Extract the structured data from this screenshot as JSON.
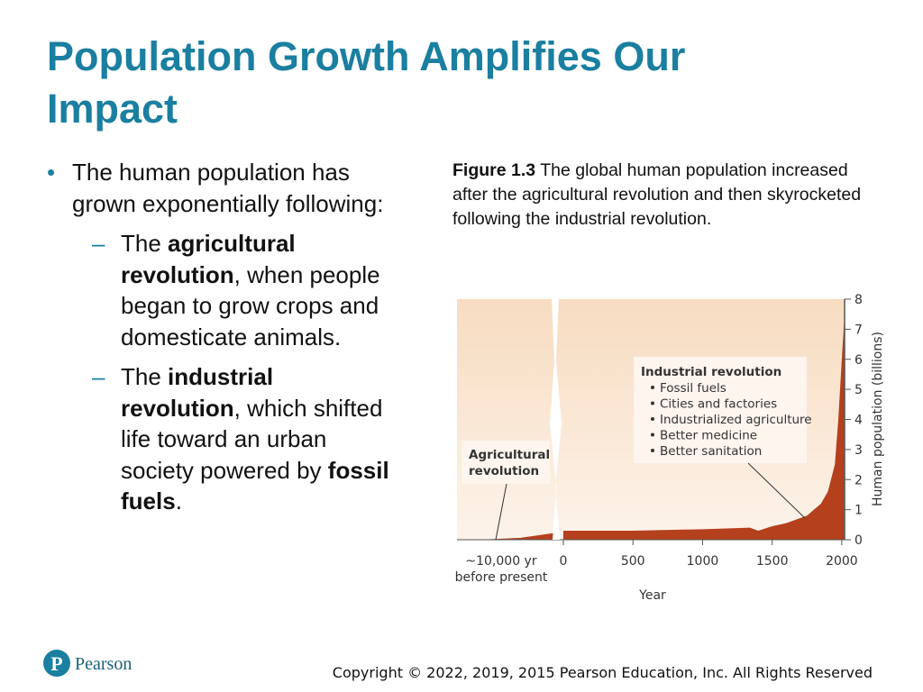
{
  "slide": {
    "title": "Population Growth Amplifies Our Impact",
    "bullet": "The human population has grown exponentially following:",
    "sub_bullets": [
      [
        {
          "text": "The "
        },
        {
          "text": "agricultural revolution",
          "bold": true
        },
        {
          "text": ", when people began to grow crops and domesticate animals."
        }
      ],
      [
        {
          "text": "The "
        },
        {
          "text": "industrial revolution",
          "bold": true
        },
        {
          "text": ", which shifted life toward an urban society powered by "
        },
        {
          "text": "fossil fuels",
          "bold": true
        },
        {
          "text": "."
        }
      ]
    ],
    "caption_label": "Figure 1.3",
    "caption": "The global human population increased after the agricultural revolution and then skyrocketed following the industrial revolution.",
    "logo": "Pearson",
    "copyright": "Copyright © 2022, 2019, 2015 Pearson Education, Inc. All Rights Reserved"
  },
  "chart_data": {
    "type": "area",
    "xlabel": "Year",
    "ylabel": "Human population (billions)",
    "early_label": "~10,000 yr before present",
    "early_values": [
      0,
      0,
      0.05,
      0.2
    ],
    "x": [
      0,
      500,
      1000,
      1340,
      1400,
      1500,
      1600,
      1750,
      1850,
      1900,
      1950,
      1975,
      2000,
      2020
    ],
    "series": [
      {
        "name": "Human population",
        "color": "#b5401d",
        "values": [
          0.3,
          0.3,
          0.35,
          0.4,
          0.3,
          0.45,
          0.55,
          0.8,
          1.2,
          1.6,
          2.5,
          4,
          6,
          7.5
        ]
      }
    ],
    "xlim": [
      0,
      2020
    ],
    "xticks": [
      0,
      500,
      1000,
      1500,
      2000
    ],
    "ylim": [
      0,
      8
    ],
    "yticks": [
      0,
      1,
      2,
      3,
      4,
      5,
      6,
      7,
      8
    ],
    "annotations": {
      "agricultural": "Agricultural revolution",
      "industrial_title": "Industrial revolution",
      "industrial_items": [
        "Fossil fuels",
        "Cities and factories",
        "Industrialized agriculture",
        "Better medicine",
        "Better sanitation"
      ]
    }
  }
}
